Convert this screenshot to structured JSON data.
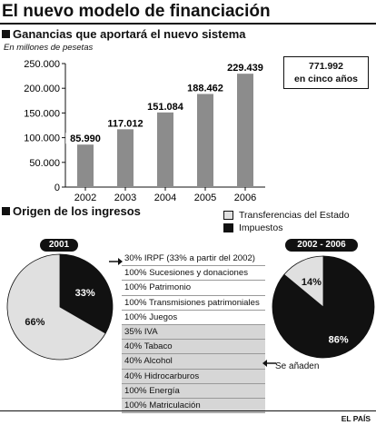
{
  "title": "El nuevo modelo de financiación",
  "bar_section": {
    "heading": "Ganancias que aportará el nuevo sistema",
    "units": "En millones de pesetas",
    "total_value": "771.992",
    "total_label": "en cinco años"
  },
  "pie_section": {
    "heading": "Origen de los ingresos",
    "legend": [
      {
        "label": "Transferencias del Estado",
        "color": "#e0e0e0"
      },
      {
        "label": "Impuestos",
        "color": "#111111"
      }
    ],
    "pie_left_title": "2001",
    "pie_right_title": "2002 - 2006",
    "added_note": "Se añaden",
    "items_2001": [
      "30% IRPF (33% a partir del 2002)",
      "100% Sucesiones y donaciones",
      "100% Patrimonio",
      "100% Transmisiones patrimoniales",
      "100% Juegos"
    ],
    "items_added": [
      "35% IVA",
      "40% Tabaco",
      "40% Alcohol",
      "40% Hidrocarburos",
      "100% Energía",
      "100% Matriculación"
    ]
  },
  "source": "EL PAÍS",
  "chart_data": [
    {
      "type": "bar",
      "title": "Ganancias que aportará el nuevo sistema",
      "ylabel": "En millones de pesetas",
      "categories": [
        "2002",
        "2003",
        "2004",
        "2005",
        "2006"
      ],
      "values": [
        85990,
        117012,
        151084,
        188462,
        229439
      ],
      "value_labels": [
        "85.990",
        "117.012",
        "151.084",
        "188.462",
        "229.439"
      ],
      "ylim": [
        0,
        250000
      ],
      "yticks": [
        0,
        50000,
        100000,
        150000,
        200000,
        250000
      ],
      "ytick_labels": [
        "0",
        "50.000",
        "100.000",
        "150.000",
        "200.000",
        "250.000"
      ],
      "grid": false
    },
    {
      "type": "pie",
      "title": "2001",
      "labels": [
        "Impuestos",
        "Transferencias del Estado"
      ],
      "values": [
        33,
        66
      ],
      "value_labels": [
        "33%",
        "66%"
      ],
      "colors": [
        "#111111",
        "#e0e0e0"
      ]
    },
    {
      "type": "pie",
      "title": "2002 - 2006",
      "labels": [
        "Impuestos",
        "Transferencias del Estado"
      ],
      "values": [
        86,
        14
      ],
      "value_labels": [
        "86%",
        "14%"
      ],
      "colors": [
        "#111111",
        "#e0e0e0"
      ]
    }
  ]
}
